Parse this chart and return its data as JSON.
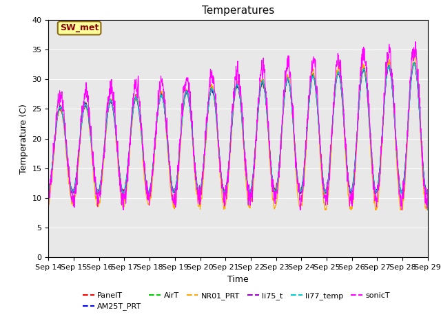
{
  "title": "Temperatures",
  "xlabel": "Time",
  "ylabel": "Temperature (C)",
  "ylim": [
    0,
    40
  ],
  "yticks": [
    0,
    5,
    10,
    15,
    20,
    25,
    30,
    35,
    40
  ],
  "n_days": 15,
  "x_labels": [
    "Sep 14",
    "Sep 15",
    "Sep 16",
    "Sep 17",
    "Sep 18",
    "Sep 19",
    "Sep 20",
    "Sep 21",
    "Sep 22",
    "Sep 23",
    "Sep 24",
    "Sep 25",
    "Sep 26",
    "Sep 27",
    "Sep 28",
    "Sep 29"
  ],
  "series_colors": {
    "PanelT": "#ff0000",
    "AM25T_PRT": "#0000ff",
    "AirT": "#00cc00",
    "NR01_PRT": "#ffa500",
    "li75_t": "#9900cc",
    "li77_temp": "#00cccc",
    "sonicT": "#ff00ff"
  },
  "legend_order": [
    "PanelT",
    "AM25T_PRT",
    "AirT",
    "NR01_PRT",
    "li75_t",
    "li77_temp",
    "sonicT"
  ],
  "annotation_text": "SW_met",
  "background_color": "#e8e8e8",
  "title_fontsize": 11,
  "axis_fontsize": 9,
  "tick_fontsize": 8,
  "legend_fontsize": 8
}
